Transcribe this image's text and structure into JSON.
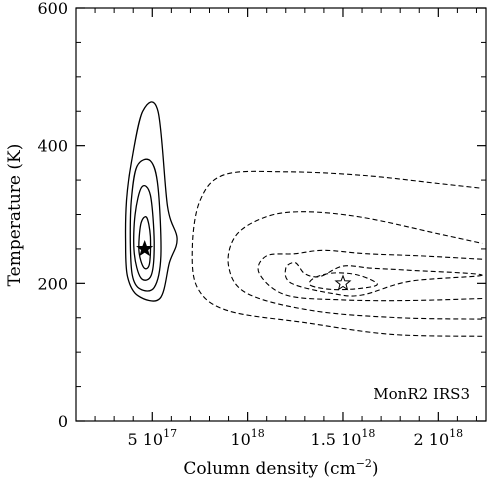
{
  "chart_data": {
    "type": "contour",
    "xlabel": "Column density (cm⁻²)",
    "ylabel": "Temperature (K)",
    "annotation": "MonR2 IRS3",
    "xlim": [
      1e+17,
      2.25e+18
    ],
    "ylim": [
      0,
      600
    ],
    "x_ticks": [
      {
        "value": 5e+17,
        "label": "5 10",
        "exp": "17"
      },
      {
        "value": 1e+18,
        "label": "10",
        "exp": "18"
      },
      {
        "value": 1.5e+18,
        "label": "1.5 10",
        "exp": "18"
      },
      {
        "value": 2e+18,
        "label": "2 10",
        "exp": "18"
      }
    ],
    "y_ticks": [
      {
        "value": 0,
        "label": "0"
      },
      {
        "value": 200,
        "label": "200"
      },
      {
        "value": 400,
        "label": "400"
      },
      {
        "value": 600,
        "label": "600"
      }
    ],
    "solid_contours": [
      [
        [
          4.25e+17,
          182
        ],
        [
          5.4e+17,
          178
        ],
        [
          5.9e+17,
          230
        ],
        [
          6.3e+17,
          265
        ],
        [
          5.8e+17,
          312
        ],
        [
          5.3e+17,
          450
        ],
        [
          4.5e+17,
          450
        ],
        [
          3.9e+17,
          375
        ],
        [
          3.65e+17,
          320
        ],
        [
          3.6e+17,
          260
        ],
        [
          3.7e+17,
          210
        ],
        [
          4.25e+17,
          182
        ]
      ],
      [
        [
          4.35e+17,
          192
        ],
        [
          5.1e+17,
          194
        ],
        [
          5.45e+17,
          240
        ],
        [
          5.3e+17,
          340
        ],
        [
          4.9e+17,
          378
        ],
        [
          4.2e+17,
          370
        ],
        [
          3.9e+17,
          320
        ],
        [
          3.85e+17,
          260
        ],
        [
          3.95e+17,
          212
        ],
        [
          4.35e+17,
          192
        ]
      ],
      [
        [
          4.4e+17,
          208
        ],
        [
          4.95e+17,
          212
        ],
        [
          5.1e+17,
          260
        ],
        [
          4.9e+17,
          328
        ],
        [
          4.45e+17,
          340
        ],
        [
          4.1e+17,
          300
        ],
        [
          4.05e+17,
          245
        ],
        [
          4.4e+17,
          208
        ]
      ],
      [
        [
          4.55e+17,
          223
        ],
        [
          4.85e+17,
          228
        ],
        [
          4.9e+17,
          268
        ],
        [
          4.7e+17,
          296
        ],
        [
          4.4e+17,
          286
        ],
        [
          4.3e+17,
          248
        ],
        [
          4.55e+17,
          223
        ]
      ]
    ],
    "dashed_contours": [
      [
        [
          2.23e+18,
          123
        ],
        [
          1.75e+18,
          126
        ],
        [
          1.3e+18,
          143
        ],
        [
          9e+17,
          160
        ],
        [
          7.4e+17,
          192
        ],
        [
          7.1e+17,
          250
        ],
        [
          7.5e+17,
          320
        ],
        [
          8.8e+17,
          358
        ],
        [
          1.2e+18,
          362
        ],
        [
          1.6e+18,
          357
        ],
        [
          2e+18,
          345
        ],
        [
          2.23e+18,
          338
        ]
      ],
      [
        [
          2.23e+18,
          148
        ],
        [
          1.8e+18,
          150
        ],
        [
          1.35e+18,
          160
        ],
        [
          1e+18,
          185
        ],
        [
          9e+17,
          225
        ],
        [
          9.4e+17,
          270
        ],
        [
          1.1e+18,
          297
        ],
        [
          1.3e+18,
          304
        ],
        [
          1.6e+18,
          296
        ],
        [
          2e+18,
          272
        ],
        [
          2.23e+18,
          258
        ]
      ],
      [
        [
          2.23e+18,
          178
        ],
        [
          1.85e+18,
          175
        ],
        [
          1.5e+18,
          176
        ],
        [
          1.2e+18,
          183
        ],
        [
          1.06e+18,
          215
        ],
        [
          1.1e+18,
          240
        ],
        [
          1.25e+18,
          243
        ],
        [
          1.4e+18,
          248
        ],
        [
          1.62e+18,
          243
        ],
        [
          1.9e+18,
          240
        ],
        [
          2.23e+18,
          235
        ]
      ],
      [
        [
          2.23e+18,
          212
        ],
        [
          1.85e+18,
          203
        ],
        [
          1.6e+18,
          183
        ],
        [
          1.45e+18,
          185
        ],
        [
          1.23e+18,
          200
        ],
        [
          1.2e+18,
          222
        ],
        [
          1.25e+18,
          230
        ],
        [
          1.3e+18,
          214
        ],
        [
          1.38e+18,
          210
        ],
        [
          1.5e+18,
          225
        ],
        [
          1.65e+18,
          222
        ],
        [
          1.85e+18,
          219
        ],
        [
          2.23e+18,
          212
        ]
      ],
      [
        [
          1.33e+18,
          197
        ],
        [
          1.45e+18,
          191
        ],
        [
          1.6e+18,
          193
        ],
        [
          1.68e+18,
          199
        ],
        [
          1.58e+18,
          212
        ],
        [
          1.45e+18,
          215
        ],
        [
          1.35e+18,
          208
        ],
        [
          1.33e+18,
          197
        ]
      ]
    ],
    "markers": [
      {
        "type": "filled-star",
        "x": 4.6e+17,
        "y": 250
      },
      {
        "type": "open-star",
        "x": 1.5e+18,
        "y": 200
      }
    ]
  }
}
